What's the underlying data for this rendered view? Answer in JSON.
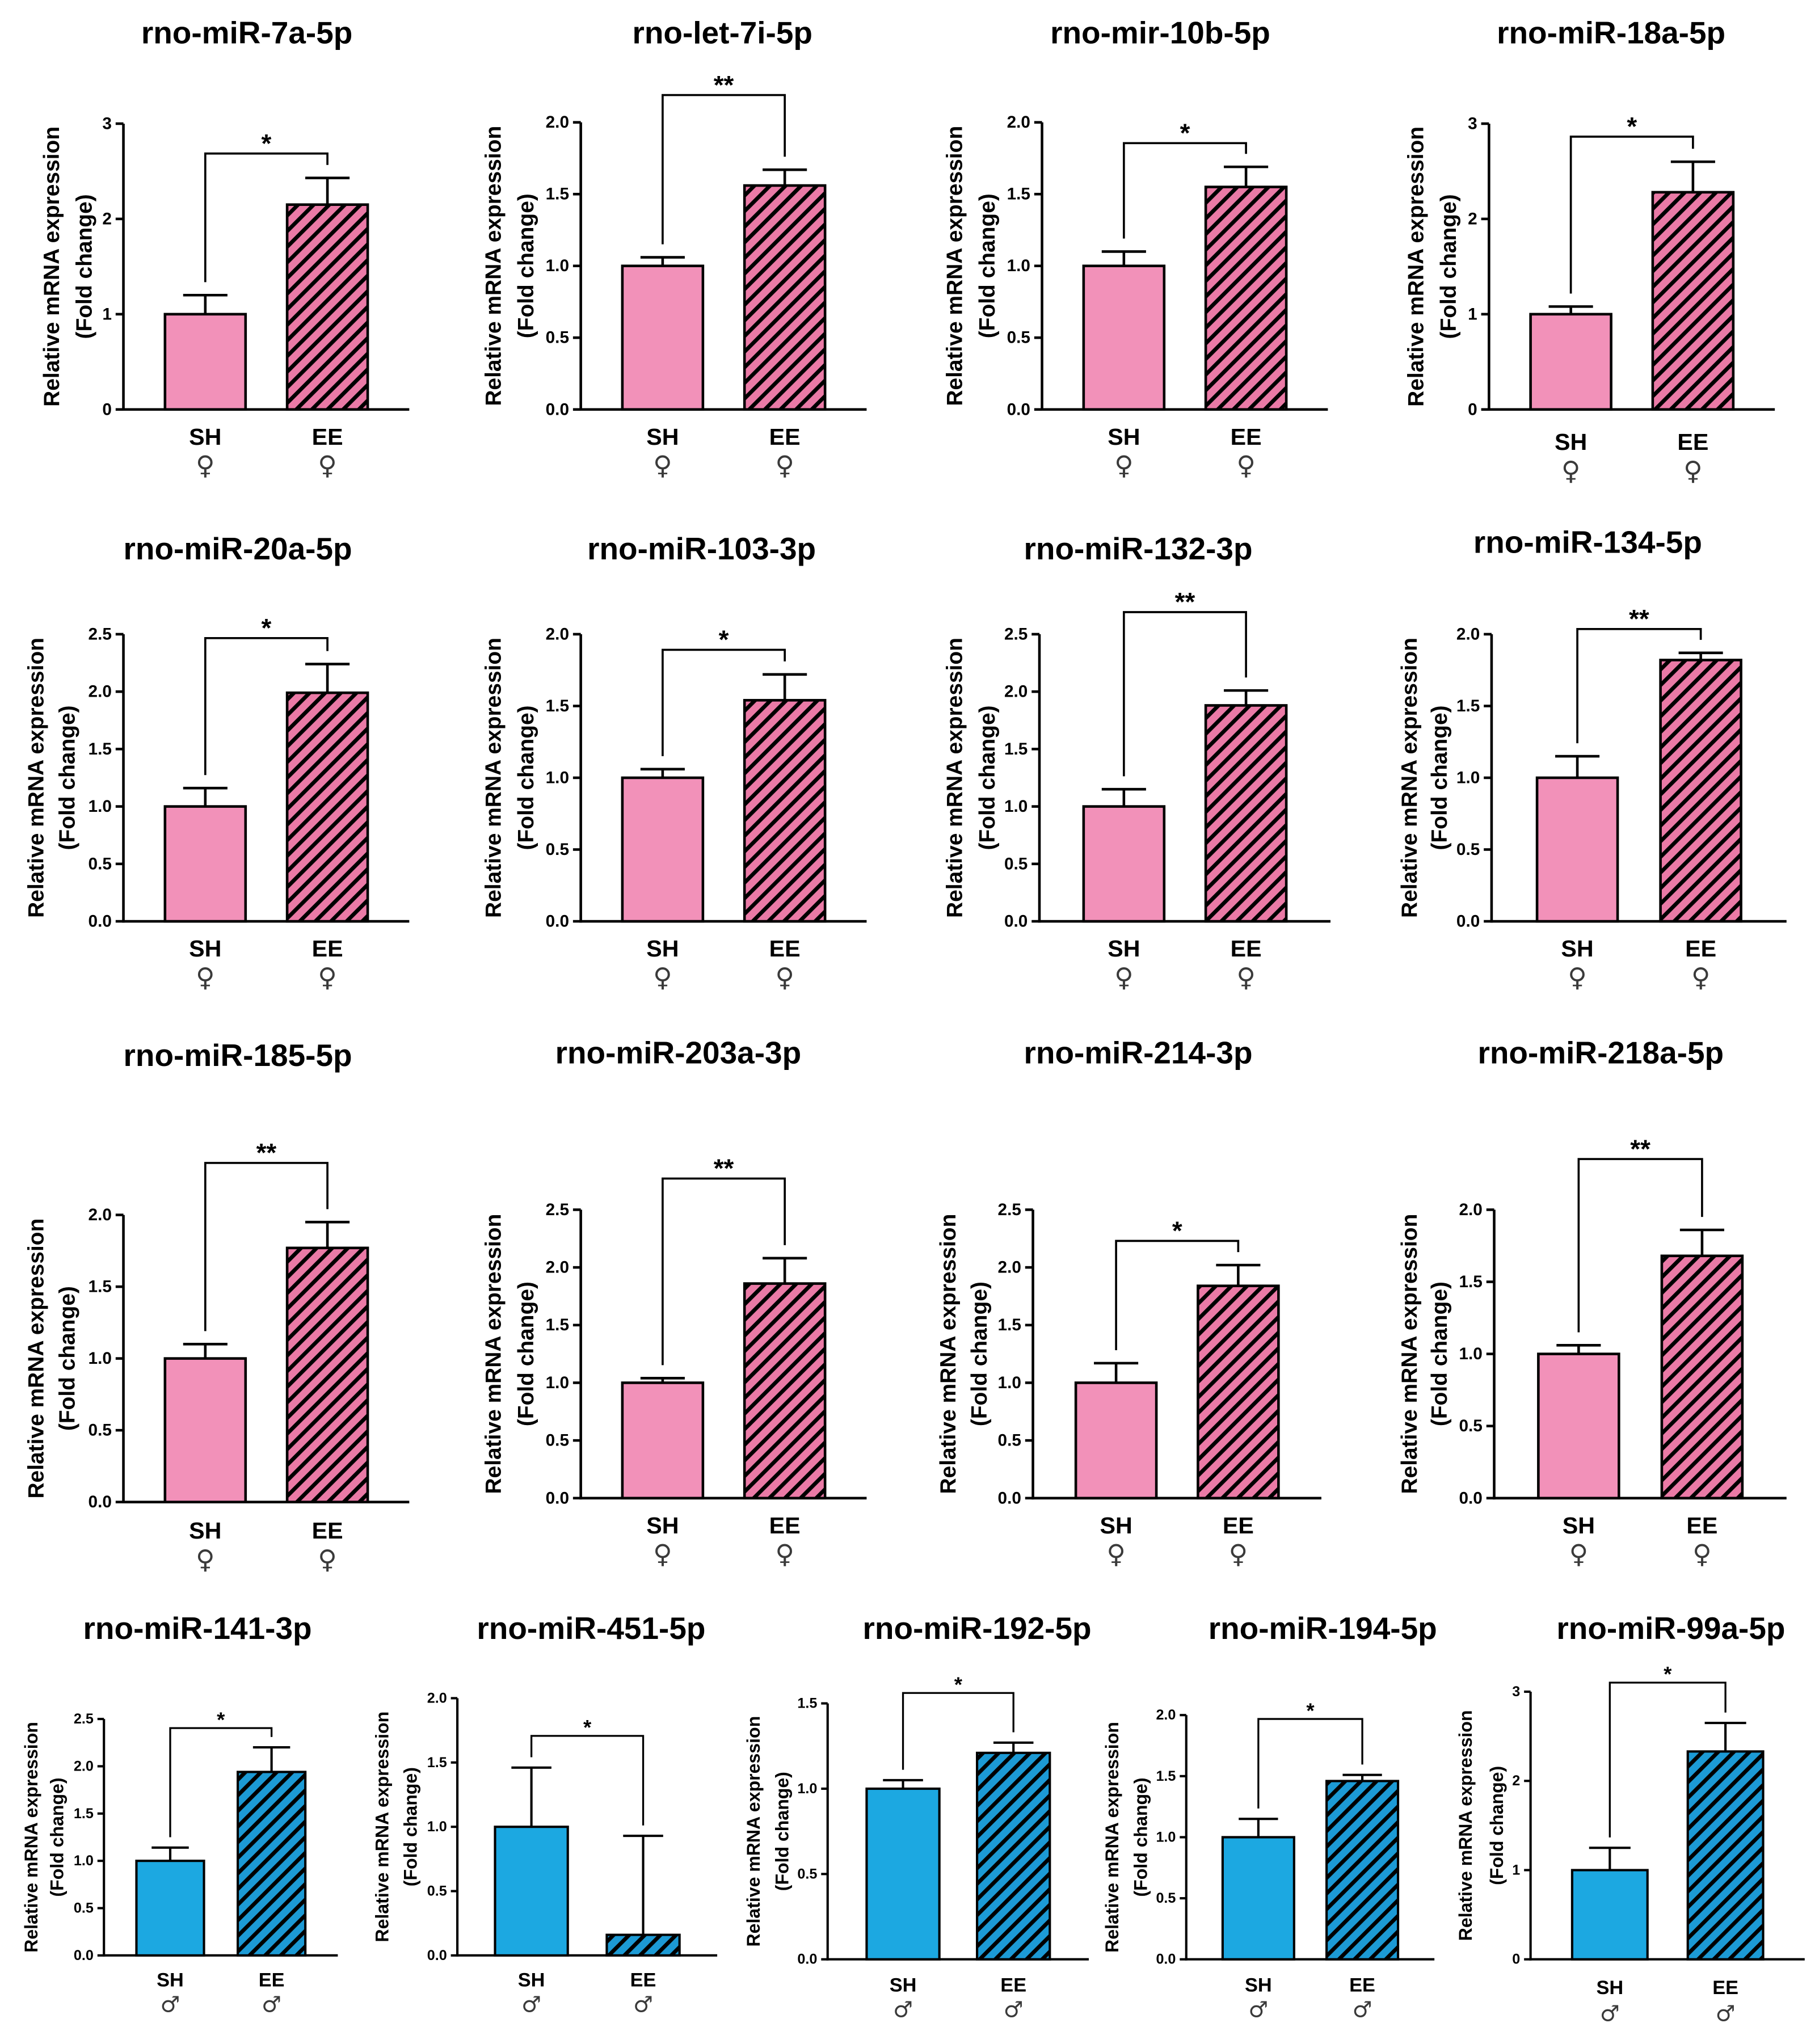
{
  "colors": {
    "stroke": "#000000",
    "hatch_line": "#000000",
    "sex_symbol": "#3a3a3a"
  },
  "chart_data": [
    {
      "type": "bar",
      "title": "rno-miR-7a-5p",
      "categories": [
        "SH",
        "EE"
      ],
      "sex": [
        "♀",
        "♀"
      ],
      "values": [
        1.0,
        2.15
      ],
      "errors": [
        0.2,
        0.28
      ],
      "ylabel": [
        "Relative mRNA expression",
        "(Fold change)"
      ],
      "ylim": [
        0,
        3
      ],
      "yticks": [
        "0",
        "1",
        "2",
        "3"
      ],
      "significance": "*",
      "hatched": [
        false,
        true
      ],
      "fill": [
        "#f291b9",
        "#ea7aa6"
      ]
    },
    {
      "type": "bar",
      "title": "rno-let-7i-5p",
      "categories": [
        "SH",
        "EE"
      ],
      "sex": [
        "♀",
        "♀"
      ],
      "values": [
        1.0,
        1.56
      ],
      "errors": [
        0.06,
        0.11
      ],
      "ylabel": [
        "Relative mRNA expression",
        "(Fold change)"
      ],
      "ylim": [
        0,
        2.0
      ],
      "yticks": [
        "0.0",
        "0.5",
        "1.0",
        "1.5",
        "2.0"
      ],
      "significance": "**",
      "hatched": [
        false,
        true
      ],
      "fill": [
        "#f291b9",
        "#ea7aa6"
      ]
    },
    {
      "type": "bar",
      "title": "rno-mir-10b-5p",
      "categories": [
        "SH",
        "EE"
      ],
      "sex": [
        "♀",
        "♀"
      ],
      "values": [
        1.0,
        1.55
      ],
      "errors": [
        0.1,
        0.14
      ],
      "ylabel": [
        "Relative mRNA expression",
        "(Fold change)"
      ],
      "ylim": [
        0,
        2.0
      ],
      "yticks": [
        "0.0",
        "0.5",
        "1.0",
        "1.5",
        "2.0"
      ],
      "significance": "*",
      "hatched": [
        false,
        true
      ],
      "fill": [
        "#f291b9",
        "#ea7aa6"
      ]
    },
    {
      "type": "bar",
      "title": "rno-miR-18a-5p",
      "categories": [
        "SH",
        "EE"
      ],
      "sex": [
        "♀",
        "♀"
      ],
      "values": [
        1.0,
        2.28
      ],
      "errors": [
        0.08,
        0.32
      ],
      "ylabel": [
        "Relative mRNA expression",
        "(Fold change)"
      ],
      "ylim": [
        0,
        3
      ],
      "yticks": [
        "0",
        "1",
        "2",
        "3"
      ],
      "significance": "*",
      "hatched": [
        false,
        true
      ],
      "fill": [
        "#f291b9",
        "#ea7aa6"
      ]
    },
    {
      "type": "bar",
      "title": "rno-miR-20a-5p",
      "categories": [
        "SH",
        "EE"
      ],
      "sex": [
        "♀",
        "♀"
      ],
      "values": [
        1.0,
        1.99
      ],
      "errors": [
        0.16,
        0.25
      ],
      "ylabel": [
        "Relative mRNA expression",
        "(Fold change)"
      ],
      "ylim": [
        0,
        2.5
      ],
      "yticks": [
        "0.0",
        "0.5",
        "1.0",
        "1.5",
        "2.0",
        "2.5"
      ],
      "significance": "*",
      "hatched": [
        false,
        true
      ],
      "fill": [
        "#f291b9",
        "#ea7aa6"
      ]
    },
    {
      "type": "bar",
      "title": "rno-miR-103-3p",
      "categories": [
        "SH",
        "EE"
      ],
      "sex": [
        "♀",
        "♀"
      ],
      "values": [
        1.0,
        1.54
      ],
      "errors": [
        0.06,
        0.18
      ],
      "ylabel": [
        "Relative mRNA expression",
        "(Fold change)"
      ],
      "ylim": [
        0,
        2.0
      ],
      "yticks": [
        "0.0",
        "0.5",
        "1.0",
        "1.5",
        "2.0"
      ],
      "significance": "*",
      "hatched": [
        false,
        true
      ],
      "fill": [
        "#f291b9",
        "#ea7aa6"
      ]
    },
    {
      "type": "bar",
      "title": "rno-miR-132-3p",
      "categories": [
        "SH",
        "EE"
      ],
      "sex": [
        "♀",
        "♀"
      ],
      "values": [
        1.0,
        1.88
      ],
      "errors": [
        0.15,
        0.13
      ],
      "ylabel": [
        "Relative mRNA expression",
        "(Fold change)"
      ],
      "ylim": [
        0,
        2.5
      ],
      "yticks": [
        "0.0",
        "0.5",
        "1.0",
        "1.5",
        "2.0",
        "2.5"
      ],
      "significance": "**",
      "hatched": [
        false,
        true
      ],
      "fill": [
        "#f291b9",
        "#ea7aa6"
      ]
    },
    {
      "type": "bar",
      "title": "rno-miR-134-5p",
      "categories": [
        "SH",
        "EE"
      ],
      "sex": [
        "♀",
        "♀"
      ],
      "values": [
        1.0,
        1.82
      ],
      "errors": [
        0.15,
        0.05
      ],
      "ylabel": [
        "Relative mRNA expression",
        "(Fold change)"
      ],
      "ylim": [
        0,
        2.0
      ],
      "yticks": [
        "0.0",
        "0.5",
        "1.0",
        "1.5",
        "2.0"
      ],
      "significance": "**",
      "hatched": [
        false,
        true
      ],
      "fill": [
        "#f291b9",
        "#ea7aa6"
      ]
    },
    {
      "type": "bar",
      "title": "rno-miR-185-5p",
      "categories": [
        "SH",
        "EE"
      ],
      "sex": [
        "♀",
        "♀"
      ],
      "values": [
        1.0,
        1.77
      ],
      "errors": [
        0.1,
        0.18
      ],
      "ylabel": [
        "Relative mRNA expression",
        "(Fold change)"
      ],
      "ylim": [
        0,
        2.0
      ],
      "yticks": [
        "0.0",
        "0.5",
        "1.0",
        "1.5",
        "2.0"
      ],
      "significance": "**",
      "hatched": [
        false,
        true
      ],
      "fill": [
        "#f291b9",
        "#ea7aa6"
      ]
    },
    {
      "type": "bar",
      "title": "rno-miR-203a-3p",
      "categories": [
        "SH",
        "EE"
      ],
      "sex": [
        "♀",
        "♀"
      ],
      "values": [
        1.0,
        1.86
      ],
      "errors": [
        0.04,
        0.22
      ],
      "ylabel": [
        "Relative mRNA expression",
        "(Fold change)"
      ],
      "ylim": [
        0,
        2.5
      ],
      "yticks": [
        "0.0",
        "0.5",
        "1.0",
        "1.5",
        "2.0",
        "2.5"
      ],
      "significance": "**",
      "hatched": [
        false,
        true
      ],
      "fill": [
        "#f291b9",
        "#ea7aa6"
      ]
    },
    {
      "type": "bar",
      "title": "rno-miR-214-3p",
      "categories": [
        "SH",
        "EE"
      ],
      "sex": [
        "♀",
        "♀"
      ],
      "values": [
        1.0,
        1.84
      ],
      "errors": [
        0.17,
        0.18
      ],
      "ylabel": [
        "Relative mRNA expression",
        "(Fold change)"
      ],
      "ylim": [
        0,
        2.5
      ],
      "yticks": [
        "0.0",
        "0.5",
        "1.0",
        "1.5",
        "2.0",
        "2.5"
      ],
      "significance": "*",
      "hatched": [
        false,
        true
      ],
      "fill": [
        "#f291b9",
        "#ea7aa6"
      ]
    },
    {
      "type": "bar",
      "title": "rno-miR-218a-5p",
      "categories": [
        "SH",
        "EE"
      ],
      "sex": [
        "♀",
        "♀"
      ],
      "values": [
        1.0,
        1.68
      ],
      "errors": [
        0.06,
        0.18
      ],
      "ylabel": [
        "Relative mRNA expression",
        "(Fold change)"
      ],
      "ylim": [
        0,
        2.0
      ],
      "yticks": [
        "0.0",
        "0.5",
        "1.0",
        "1.5",
        "2.0"
      ],
      "significance": "**",
      "hatched": [
        false,
        true
      ],
      "fill": [
        "#f291b9",
        "#ea7aa6"
      ]
    },
    {
      "type": "bar",
      "title": "rno-miR-141-3p",
      "categories": [
        "SH",
        "EE"
      ],
      "sex": [
        "♂",
        "♂"
      ],
      "values": [
        1.0,
        1.94
      ],
      "errors": [
        0.14,
        0.26
      ],
      "ylabel": [
        "Relative mRNA expression",
        "(Fold change)"
      ],
      "ylim": [
        0,
        2.5
      ],
      "yticks": [
        "0.0",
        "0.5",
        "1.0",
        "1.5",
        "2.0",
        "2.5"
      ],
      "significance": "*",
      "hatched": [
        false,
        true
      ],
      "fill": [
        "#1ca8e1",
        "#1c9ad5"
      ]
    },
    {
      "type": "bar",
      "title": "rno-miR-451-5p",
      "categories": [
        "SH",
        "EE"
      ],
      "sex": [
        "♂",
        "♂"
      ],
      "values": [
        1.0,
        0.16
      ],
      "errors": [
        0.46,
        0.77
      ],
      "ylabel": [
        "Relative mRNA expression",
        "(Fold change)"
      ],
      "ylim": [
        0,
        2.0
      ],
      "yticks": [
        "0.0",
        "0.5",
        "1.0",
        "1.5",
        "2.0"
      ],
      "significance": "*",
      "hatched": [
        false,
        true
      ],
      "fill": [
        "#1ca8e1",
        "#1c9ad5"
      ]
    },
    {
      "type": "bar",
      "title": "rno-miR-192-5p",
      "categories": [
        "SH",
        "EE"
      ],
      "sex": [
        "♂",
        "♂"
      ],
      "values": [
        1.0,
        1.21
      ],
      "errors": [
        0.05,
        0.06
      ],
      "ylabel": [
        "Relative mRNA expression",
        "(Fold change)"
      ],
      "ylim": [
        0,
        1.5
      ],
      "yticks": [
        "0.0",
        "0.5",
        "1.0",
        "1.5"
      ],
      "significance": "*",
      "hatched": [
        false,
        true
      ],
      "fill": [
        "#1ca8e1",
        "#1c9ad5"
      ]
    },
    {
      "type": "bar",
      "title": "rno-miR-194-5p",
      "categories": [
        "SH",
        "EE"
      ],
      "sex": [
        "♂",
        "♂"
      ],
      "values": [
        1.0,
        1.46
      ],
      "errors": [
        0.15,
        0.05
      ],
      "ylabel": [
        "Relative mRNA expression",
        "(Fold change)"
      ],
      "ylim": [
        0,
        2.0
      ],
      "yticks": [
        "0.0",
        "0.5",
        "1.0",
        "1.5",
        "2.0"
      ],
      "significance": "*",
      "hatched": [
        false,
        true
      ],
      "fill": [
        "#1ca8e1",
        "#1c9ad5"
      ]
    },
    {
      "type": "bar",
      "title": "rno-miR-99a-5p",
      "categories": [
        "SH",
        "EE"
      ],
      "sex": [
        "♂",
        "♂"
      ],
      "values": [
        1.0,
        2.33
      ],
      "errors": [
        0.25,
        0.32
      ],
      "ylabel": [
        "Relative mRNA expression",
        "(Fold change)"
      ],
      "ylim": [
        0,
        3
      ],
      "yticks": [
        "0",
        "1",
        "2",
        "3"
      ],
      "significance": "*",
      "hatched": [
        false,
        true
      ],
      "fill": [
        "#1ca8e1",
        "#1c9ad5"
      ]
    }
  ]
}
